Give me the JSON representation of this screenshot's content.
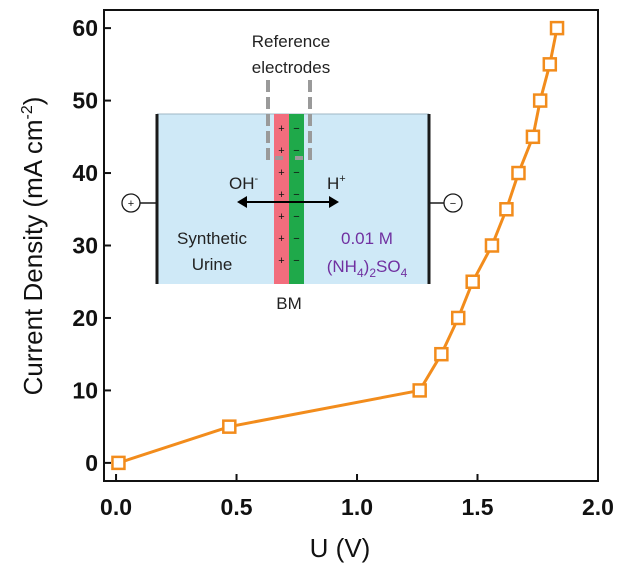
{
  "chart_data": {
    "type": "line",
    "xlabel": "U (V)",
    "ylabel_main": "Current Density (mA cm",
    "ylabel_sup": "-2",
    "ylabel_end": ")",
    "xlim": [
      -0.05,
      2.0
    ],
    "ylim": [
      -2.5,
      62.5
    ],
    "xticks": [
      0.0,
      0.5,
      1.0,
      1.5,
      2.0
    ],
    "xtick_labels": [
      "0.0",
      "0.5",
      "1.0",
      "1.5",
      "2.0"
    ],
    "yticks": [
      0,
      10,
      20,
      30,
      40,
      50,
      60
    ],
    "ytick_labels": [
      "0",
      "10",
      "20",
      "30",
      "40",
      "50",
      "60"
    ],
    "series": [
      {
        "color": "#f28c1c",
        "marker": "open-square",
        "x": [
          0.01,
          0.47,
          1.26,
          1.35,
          1.42,
          1.48,
          1.56,
          1.62,
          1.67,
          1.73,
          1.76,
          1.8,
          1.83
        ],
        "y": [
          0,
          5,
          10,
          15,
          20,
          25,
          30,
          35,
          40,
          45,
          50,
          55,
          60
        ]
      }
    ],
    "grid": false,
    "legend": "none"
  },
  "inset": {
    "reference_line1": "Reference",
    "reference_line2": "electrodes",
    "anode_sign": "+",
    "cathode_sign": "−",
    "oh_label": "OH",
    "oh_sup": "-",
    "h_label": "H",
    "h_sup": "+",
    "left_line1": "Synthetic",
    "left_line2": "Urine",
    "right_line1": "0.01 M",
    "right_formula_a": "(NH",
    "right_formula_b": "4",
    "right_formula_c": ")",
    "right_formula_d": "2",
    "right_formula_e": "SO",
    "right_formula_f": "4",
    "membrane_label": "BM",
    "membrane_plus": "+",
    "membrane_minus": "−",
    "colors": {
      "solution": "#cfe9f7",
      "cation_layer": "#f26d7d",
      "anion_layer": "#1fa94a",
      "electrode": "#1a1a1a",
      "reference": "#9a9a9a",
      "purple_text": "#7030a0"
    }
  }
}
